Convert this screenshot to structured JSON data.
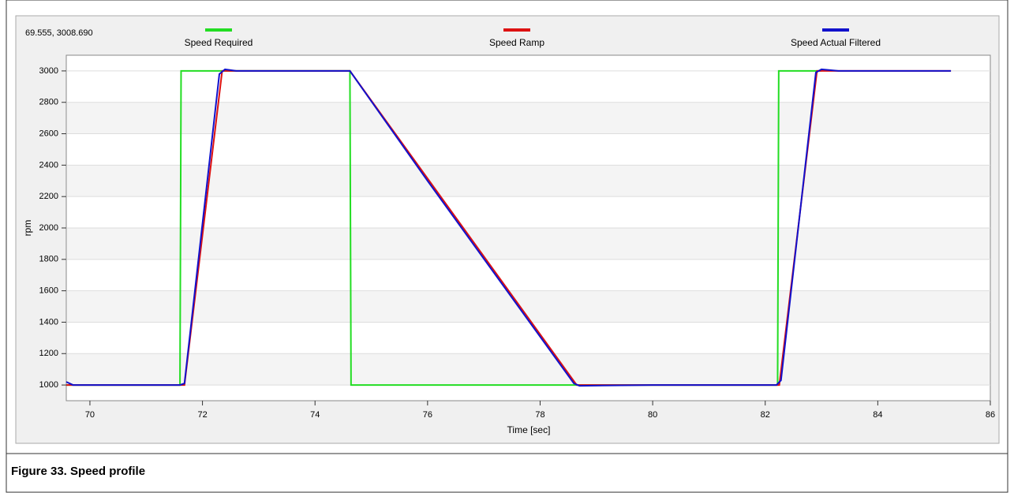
{
  "chart_data": {
    "type": "line",
    "readout": "69.555, 3008.690",
    "xlabel": "Time [sec]",
    "ylabel": "rpm",
    "caption": "Figure 33. Speed profile",
    "xlim": [
      69.58,
      86
    ],
    "xticks": [
      70,
      72,
      74,
      76,
      78,
      80,
      82,
      84,
      86
    ],
    "ylim": [
      900,
      3100
    ],
    "yticks": [
      1000,
      1200,
      1400,
      1600,
      1800,
      2000,
      2200,
      2400,
      2600,
      2800,
      3000
    ],
    "grid": true,
    "series": [
      {
        "name": "Speed Required",
        "color": "#22dd22",
        "x": [
          69.58,
          71.6,
          71.62,
          74.62,
          74.64,
          82.22,
          82.24,
          83.0
        ],
        "values": [
          1000,
          1000,
          3000,
          3000,
          1000,
          1000,
          3000,
          3000
        ]
      },
      {
        "name": "Speed Ramp",
        "color": "#dd1111",
        "x": [
          69.58,
          71.68,
          72.35,
          74.62,
          78.65,
          82.25,
          82.92,
          85.3
        ],
        "values": [
          1000,
          1000,
          3000,
          3000,
          1000,
          1000,
          3000,
          3000
        ]
      },
      {
        "name": "Speed Actual Filtered",
        "color": "#1111cc",
        "x": [
          69.58,
          69.7,
          71.6,
          71.68,
          72.3,
          72.4,
          72.6,
          74.62,
          76,
          78.6,
          78.7,
          80,
          82.2,
          82.28,
          82.9,
          83.0,
          83.3,
          85.3
        ],
        "values": [
          1020,
          1000,
          1000,
          1010,
          2980,
          3010,
          3000,
          3000,
          2300,
          1010,
          995,
          1000,
          1000,
          1030,
          2990,
          3010,
          3000,
          3000
        ]
      }
    ]
  }
}
